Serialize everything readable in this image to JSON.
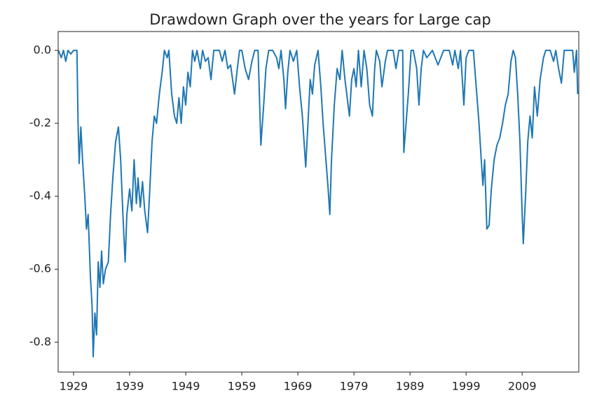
{
  "chart_data": {
    "type": "line",
    "title": "Drawdown Graph over the years for Large cap",
    "series": [
      {
        "color": "#1f77b4",
        "x": [
          1926.3,
          1926.8,
          1927.2,
          1927.6,
          1928,
          1928.5,
          1929,
          1929.6,
          1929.8,
          1930,
          1930.3,
          1930.6,
          1931,
          1931.3,
          1931.6,
          1932,
          1932.3,
          1932.5,
          1932.8,
          1933.1,
          1933.4,
          1933.7,
          1934,
          1934.3,
          1934.7,
          1935.2,
          1935.6,
          1936,
          1936.5,
          1937,
          1937.4,
          1937.8,
          1938.2,
          1938.5,
          1939,
          1939.4,
          1939.8,
          1940.2,
          1940.5,
          1940.9,
          1941.3,
          1941.7,
          1942.2,
          1942.6,
          1943,
          1943.4,
          1943.8,
          1944.3,
          1944.8,
          1945.2,
          1945.7,
          1946,
          1946.5,
          1947,
          1947.4,
          1947.8,
          1948.2,
          1948.6,
          1949,
          1949.4,
          1949.8,
          1950.2,
          1950.6,
          1951,
          1951.6,
          1952,
          1952.5,
          1953,
          1953.5,
          1954,
          1955,
          1955.5,
          1956,
          1956.5,
          1957,
          1957.7,
          1958.2,
          1958.6,
          1959,
          1959.6,
          1960.2,
          1960.8,
          1961.3,
          1961.9,
          1962.4,
          1962.9,
          1963.3,
          1963.8,
          1964.5,
          1965.2,
          1965.6,
          1966,
          1966.5,
          1966.8,
          1967.2,
          1967.6,
          1968.2,
          1968.8,
          1969.3,
          1969.8,
          1970.4,
          1970.8,
          1971.2,
          1971.6,
          1972,
          1972.6,
          1973.1,
          1973.5,
          1974,
          1974.4,
          1974.7,
          1975,
          1975.5,
          1976,
          1976.5,
          1976.9,
          1977.4,
          1977.8,
          1978.2,
          1978.6,
          1979,
          1979.4,
          1979.8,
          1980.3,
          1980.8,
          1981.3,
          1981.8,
          1982.3,
          1982.7,
          1983,
          1983.6,
          1984,
          1984.6,
          1985,
          1986,
          1986.5,
          1987,
          1987.7,
          1987.9,
          1988.3,
          1988.7,
          1989.2,
          1989.6,
          1990.2,
          1990.6,
          1991,
          1991.4,
          1992,
          1993,
          1994,
          1995,
          1996,
          1996.6,
          1997,
          1997.6,
          1998,
          1998.6,
          1999,
          1999.5,
          2000.3,
          2000.8,
          2001.3,
          2001.7,
          2002,
          2002.3,
          2002.7,
          2003.1,
          2003.5,
          2004,
          2004.5,
          2005,
          2005.5,
          2006,
          2006.5,
          2007,
          2007.4,
          2007.8,
          2008.2,
          2008.6,
          2009,
          2009.2,
          2009.6,
          2010,
          2010.4,
          2010.8,
          2011.2,
          2011.7,
          2012.2,
          2012.8,
          2013.2,
          2014,
          2014.6,
          2015,
          2015.5,
          2016,
          2016.5,
          2017,
          2018,
          2018.3,
          2018.7,
          2018.9
        ],
        "values": [
          0,
          -0.02,
          0,
          -0.03,
          0,
          -0.01,
          0,
          0,
          -0.2,
          -0.31,
          -0.21,
          -0.3,
          -0.4,
          -0.49,
          -0.45,
          -0.62,
          -0.7,
          -0.84,
          -0.72,
          -0.78,
          -0.58,
          -0.65,
          -0.55,
          -0.64,
          -0.6,
          -0.58,
          -0.45,
          -0.35,
          -0.25,
          -0.21,
          -0.3,
          -0.45,
          -0.58,
          -0.45,
          -0.38,
          -0.44,
          -0.3,
          -0.42,
          -0.35,
          -0.43,
          -0.36,
          -0.44,
          -0.5,
          -0.38,
          -0.25,
          -0.18,
          -0.2,
          -0.12,
          -0.06,
          0,
          -0.02,
          0,
          -0.12,
          -0.18,
          -0.2,
          -0.13,
          -0.2,
          -0.1,
          -0.15,
          -0.06,
          -0.1,
          0,
          -0.03,
          0,
          -0.05,
          0,
          -0.03,
          -0.02,
          -0.08,
          0,
          0,
          -0.03,
          0,
          -0.05,
          -0.04,
          -0.12,
          -0.05,
          0,
          0,
          -0.05,
          -0.08,
          -0.03,
          0,
          0,
          -0.26,
          -0.15,
          -0.05,
          0,
          0,
          -0.02,
          -0.05,
          0,
          -0.08,
          -0.16,
          -0.06,
          0,
          -0.03,
          0,
          -0.1,
          -0.18,
          -0.32,
          -0.2,
          -0.08,
          -0.12,
          -0.04,
          0,
          -0.1,
          -0.2,
          -0.3,
          -0.38,
          -0.45,
          -0.3,
          -0.15,
          -0.05,
          -0.08,
          0,
          -0.08,
          -0.13,
          -0.18,
          -0.08,
          -0.05,
          -0.1,
          0,
          -0.1,
          0,
          -0.05,
          -0.15,
          -0.18,
          -0.05,
          0,
          -0.03,
          -0.1,
          -0.03,
          0,
          0,
          -0.05,
          0,
          0,
          -0.28,
          -0.2,
          -0.12,
          0,
          0,
          -0.05,
          -0.15,
          -0.05,
          0,
          -0.02,
          0,
          -0.04,
          0,
          0,
          -0.04,
          0,
          -0.05,
          0,
          -0.15,
          -0.02,
          0,
          0,
          -0.1,
          -0.2,
          -0.3,
          -0.37,
          -0.3,
          -0.49,
          -0.48,
          -0.38,
          -0.3,
          -0.26,
          -0.24,
          -0.2,
          -0.15,
          -0.12,
          -0.03,
          0,
          -0.02,
          -0.12,
          -0.25,
          -0.45,
          -0.53,
          -0.4,
          -0.25,
          -0.18,
          -0.24,
          -0.1,
          -0.18,
          -0.08,
          -0.02,
          0,
          0,
          -0.03,
          0,
          -0.05,
          -0.09,
          0,
          0,
          0,
          -0.06,
          0,
          -0.12
        ]
      }
    ],
    "xlim": [
      1926.25,
      2019.1
    ],
    "xticks": [
      1929,
      1939,
      1949,
      1959,
      1969,
      1979,
      1989,
      1999,
      2009
    ],
    "ylim": [
      -0.882,
      0.042
    ],
    "yticks": [
      {
        "value": 0,
        "label": "0.0"
      },
      -0.2,
      -0.4,
      -0.6,
      -0.8
    ]
  }
}
